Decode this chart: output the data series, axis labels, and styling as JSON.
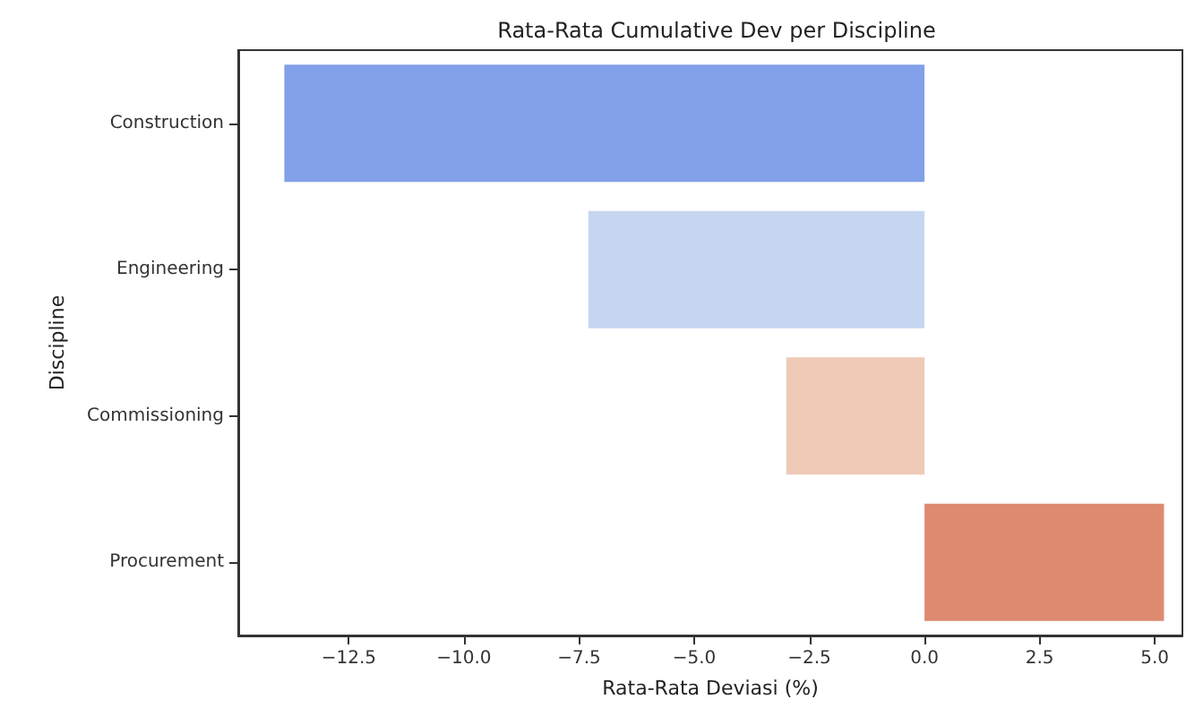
{
  "chart_data": {
    "type": "bar",
    "orientation": "horizontal",
    "title": "Rata-Rata Cumulative Dev per Discipline",
    "xlabel": "Rata-Rata Deviasi (%)",
    "ylabel": "Discipline",
    "categories": [
      "Construction",
      "Engineering",
      "Commissioning",
      "Procurement"
    ],
    "values": [
      -13.9,
      -7.3,
      -3.0,
      5.2
    ],
    "colors": [
      "#81a0e8",
      "#c7d6f0",
      "#eecab6",
      "#dd8a70"
    ],
    "xlim": [
      -14.9,
      5.6
    ],
    "xticks": [
      {
        "value": -12.5,
        "label": "−12.5"
      },
      {
        "value": -10,
        "label": "−10.0"
      },
      {
        "value": -7.5,
        "label": "−7.5"
      },
      {
        "value": -5,
        "label": "−5.0"
      },
      {
        "value": -2.5,
        "label": "−2.5"
      },
      {
        "value": 0,
        "label": "0.0"
      },
      {
        "value": 2.5,
        "label": "2.5"
      },
      {
        "value": 5,
        "label": "5.0"
      }
    ],
    "grid": false
  }
}
